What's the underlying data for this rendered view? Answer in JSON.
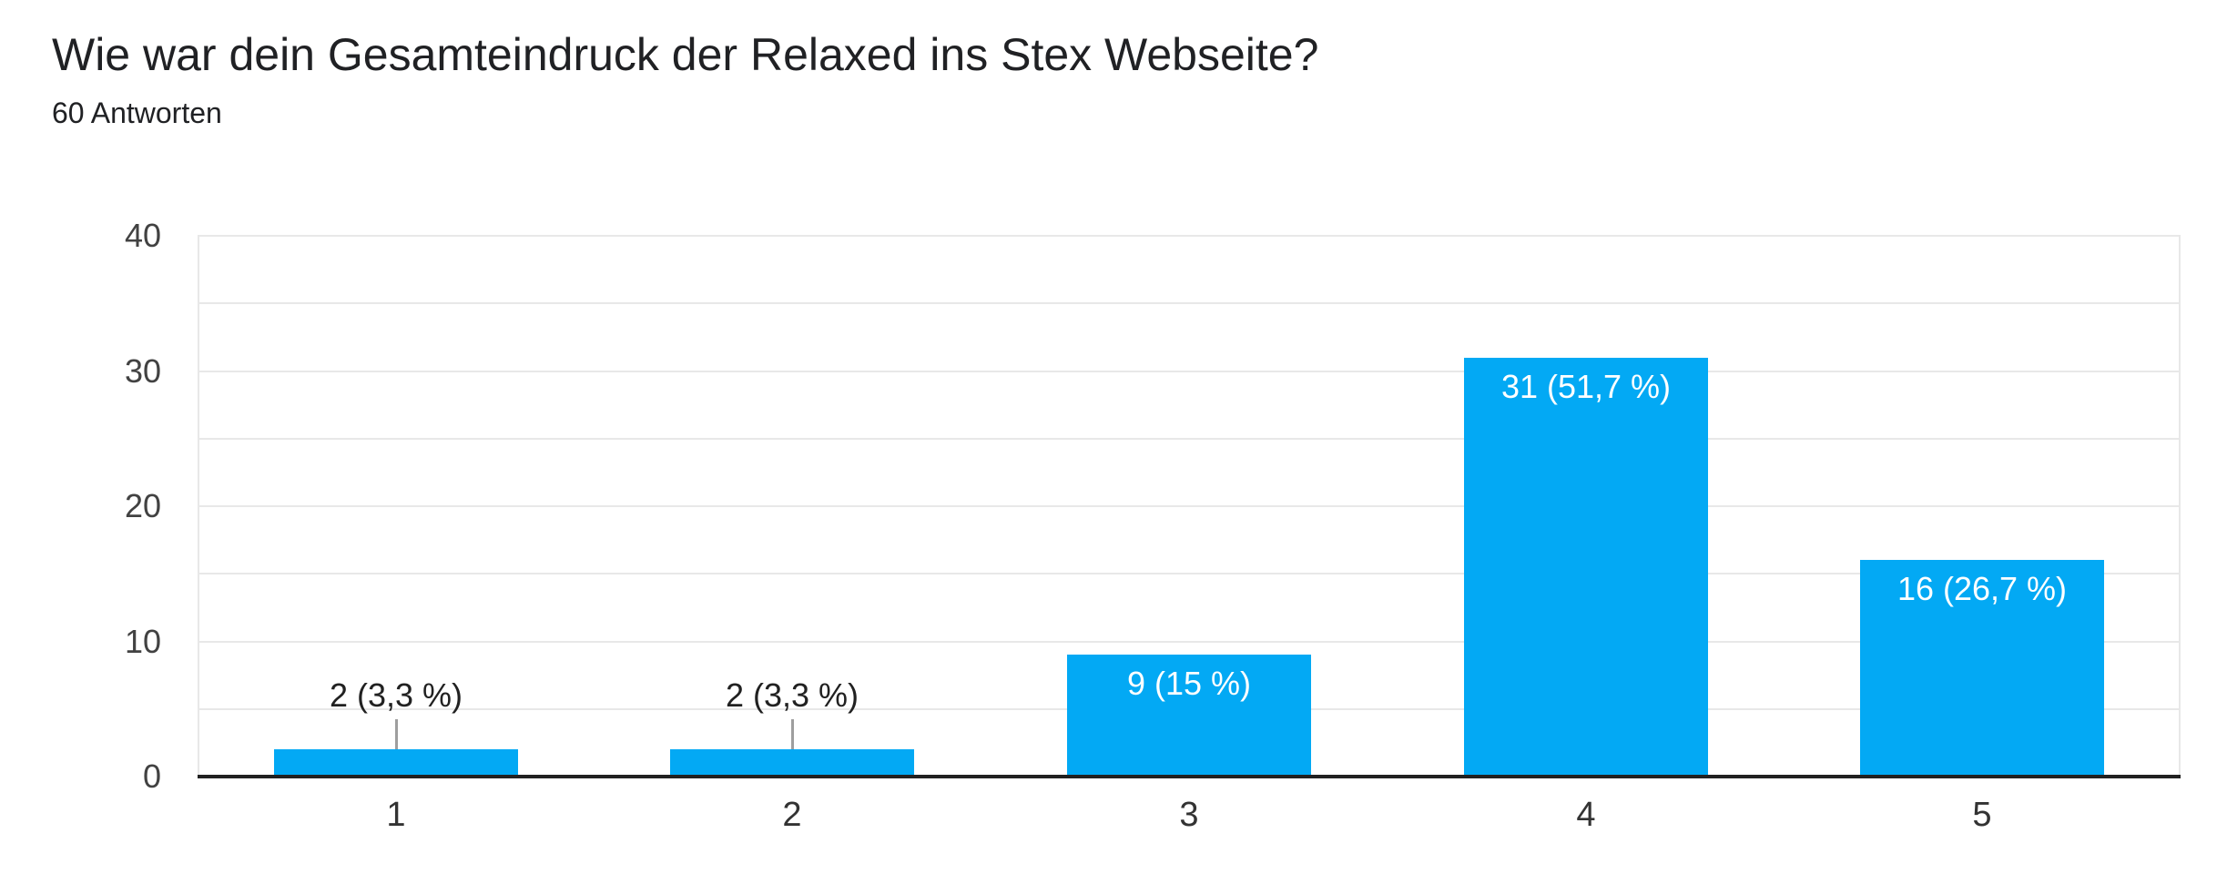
{
  "header": {
    "title": "Wie war dein Gesamteindruck der Relaxed ins Stex Webseite?",
    "responses_label": "60 Antworten"
  },
  "chart_data": {
    "type": "bar",
    "title": "Wie war dein Gesamteindruck der Relaxed ins Stex Webseite?",
    "subtitle": "60 Antworten",
    "categories": [
      "1",
      "2",
      "3",
      "4",
      "5"
    ],
    "values": [
      2,
      2,
      9,
      31,
      16
    ],
    "bar_labels": [
      "2 (3,3 %)",
      "2 (3,3 %)",
      "9 (15 %)",
      "31 (51,7 %)",
      "16 (26,7 %)"
    ],
    "xlabel": "",
    "ylabel": "",
    "ylim": [
      0,
      40
    ],
    "yticks": [
      0,
      10,
      20,
      30,
      40
    ],
    "gridline_step": 5,
    "grid": true,
    "legend": "none",
    "colors": {
      "bar": "#03a9f4",
      "grid": "#e8e8e8",
      "axis_line": "#212121",
      "tick_label": "#424242",
      "category_label": "#333333",
      "inside_label": "#ffffff",
      "outside_label": "#212121",
      "leader_line": "#9e9e9e",
      "title": "#202124"
    }
  }
}
